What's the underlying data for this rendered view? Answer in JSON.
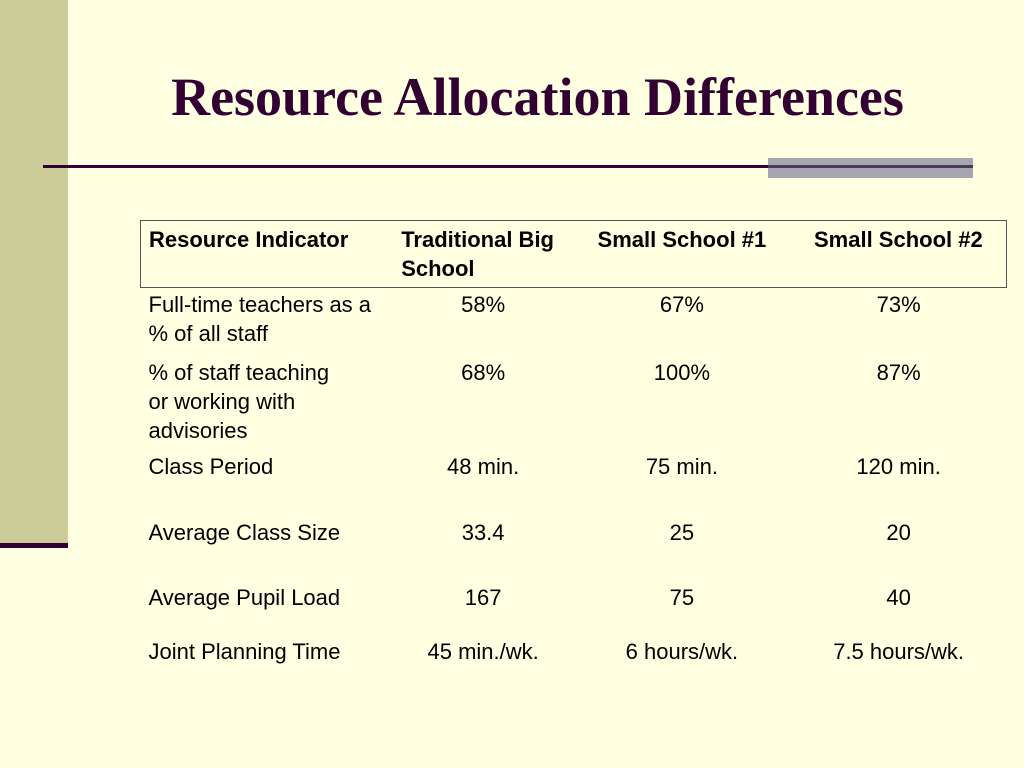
{
  "title": "Resource Allocation Differences",
  "table": {
    "headers": [
      "Resource Indicator",
      "Traditional Big School",
      "Small School #1",
      "Small School #2"
    ],
    "rows": [
      {
        "label": "Full-time teachers as a % of all staff",
        "values": [
          "58%",
          "67%",
          "73%"
        ]
      },
      {
        "label": "% of staff teaching or working with advisories",
        "values": [
          "68%",
          "100%",
          "87%"
        ]
      },
      {
        "label": "Class Period",
        "values": [
          "48 min.",
          "75 min.",
          "120 min."
        ]
      },
      {
        "label": "Average Class Size",
        "values": [
          "33.4",
          "25",
          "20"
        ]
      },
      {
        "label": "Average Pupil Load",
        "values": [
          "167",
          "75",
          "40"
        ]
      },
      {
        "label": "Joint Planning Time",
        "values": [
          "45 min./wk.",
          "6 hours/wk.",
          "7.5 hours/wk."
        ]
      }
    ]
  }
}
